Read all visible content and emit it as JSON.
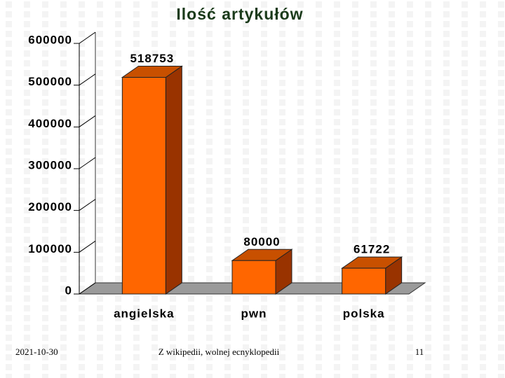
{
  "chart_data": {
    "type": "bar3d",
    "title": "Ilość artykułów",
    "categories": [
      "angielska",
      "pwn",
      "polska"
    ],
    "values": [
      518753,
      80000,
      61722
    ],
    "color": "#ff6600",
    "ylim": [
      0,
      600000
    ],
    "yticks": [
      0,
      100000,
      200000,
      300000,
      400000,
      500000,
      600000
    ]
  },
  "slide": {
    "date": "2021-10-30",
    "caption": "Z wikipedii, wolnej ecnyklopedii",
    "page_number": "11"
  }
}
